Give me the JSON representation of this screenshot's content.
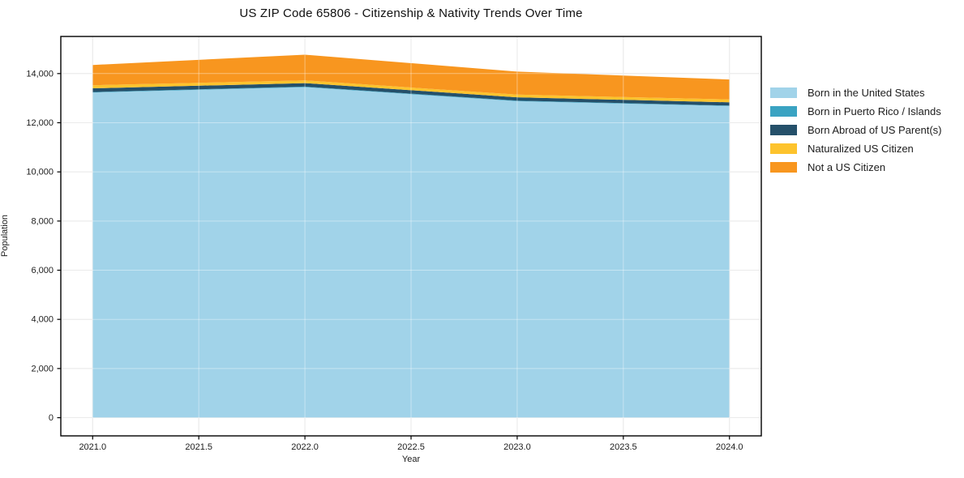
{
  "chart_data": {
    "type": "area",
    "stacked": true,
    "title": "US ZIP Code 65806 - Citizenship & Nativity Trends Over Time",
    "xlabel": "Year",
    "ylabel": "Population",
    "x": [
      2021,
      2022,
      2023,
      2024
    ],
    "series": [
      {
        "name": "Born in the United States",
        "color": "#a1d3e9",
        "values": [
          13230,
          13445,
          12875,
          12680
        ]
      },
      {
        "name": "Born in Puerto Rico / Islands",
        "color": "#3aa3c2",
        "values": [
          20,
          25,
          20,
          20
        ]
      },
      {
        "name": "Born Abroad of US Parent(s)",
        "color": "#25506a",
        "values": [
          150,
          140,
          140,
          130
        ]
      },
      {
        "name": "Naturalized US Citizen",
        "color": "#fdc32d",
        "values": [
          125,
          115,
          110,
          120
        ]
      },
      {
        "name": "Not a US Citizen",
        "color": "#f8961f",
        "values": [
          825,
          1045,
          935,
          810
        ]
      }
    ],
    "totals": [
      14350,
      14770,
      14080,
      13760
    ],
    "x_ticks": {
      "values": [
        2021.0,
        2021.5,
        2022.0,
        2022.5,
        2023.0,
        2023.5,
        2024.0
      ],
      "labels": [
        "2021.0",
        "2021.5",
        "2022.0",
        "2022.5",
        "2023.0",
        "2023.5",
        "2024.0"
      ]
    },
    "y_ticks": {
      "values": [
        0,
        2000,
        4000,
        6000,
        8000,
        10000,
        12000,
        14000
      ],
      "labels": [
        "0",
        "2,000",
        "4,000",
        "6,000",
        "8,000",
        "10,000",
        "12,000",
        "14,000"
      ]
    },
    "xlim": [
      2020.85,
      2024.15
    ],
    "ylim": [
      -740,
      15510
    ],
    "grid": true,
    "legend_position": "right-outside",
    "colors": {
      "background": "#ffffff",
      "grid": "#dcdcdc",
      "grid_overlay": "rgba(255,255,255,0.4)",
      "frame": "#000000",
      "text": "#1c1c1c"
    }
  }
}
